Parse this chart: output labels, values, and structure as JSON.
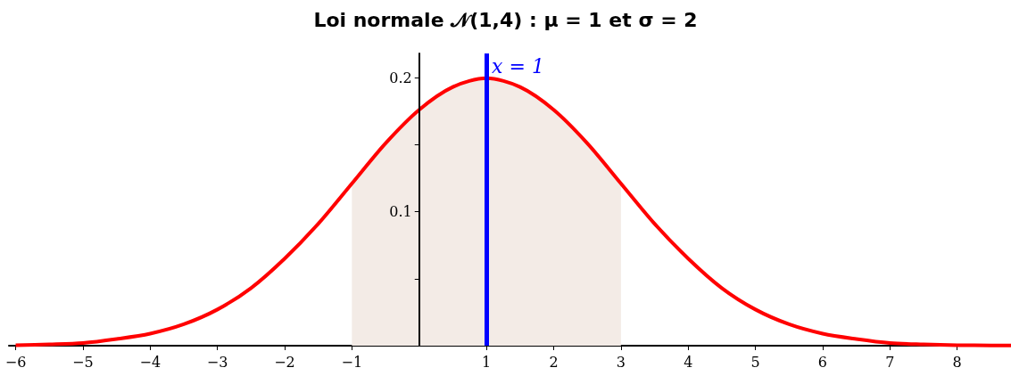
{
  "chart_data": {
    "type": "line",
    "title": "Loi normale 𝒩(1,4) : μ = 1 et σ = 2",
    "series": [
      {
        "type": "area",
        "color": "#f3ebe6",
        "x": [
          -1,
          -0.5,
          0,
          0.5,
          1,
          1.5,
          2,
          2.5,
          3
        ],
        "values": [
          0.121,
          0.151,
          0.176,
          0.193,
          0.1995,
          0.193,
          0.176,
          0.151,
          0.121
        ]
      },
      {
        "type": "line",
        "color": "#ff0000",
        "x": [
          -6,
          -5.5,
          -5,
          -4.5,
          -4,
          -3.5,
          -3,
          -2.5,
          -2,
          -1.5,
          -1,
          -0.5,
          0,
          0.5,
          1,
          1.5,
          2,
          2.5,
          3,
          3.5,
          4,
          4.5,
          5,
          5.5,
          6,
          6.5,
          7,
          7.5,
          8,
          8.5,
          8.8
        ],
        "values": [
          0.0004,
          0.001,
          0.002,
          0.005,
          0.009,
          0.016,
          0.027,
          0.043,
          0.065,
          0.091,
          0.121,
          0.151,
          0.176,
          0.193,
          0.1995,
          0.193,
          0.176,
          0.151,
          0.121,
          0.091,
          0.065,
          0.043,
          0.027,
          0.016,
          0.009,
          0.005,
          0.002,
          0.001,
          0.0004,
          0.0002,
          0.0001
        ]
      }
    ],
    "xlim": [
      -6.1,
      8.8
    ],
    "xticks": [
      -6,
      -5,
      -4,
      -3,
      -2,
      -1,
      1,
      2,
      3,
      4,
      5,
      6,
      7,
      8
    ],
    "ylim": [
      0,
      0.218
    ],
    "yticks": [
      {
        "value": 0.05,
        "label": null
      },
      0.1,
      {
        "value": 0.15,
        "label": null
      },
      0.2
    ],
    "ref_lines": [
      {
        "axis": "x",
        "value": 1,
        "label": "x = 1",
        "color": "#0000ff"
      }
    ],
    "grid": false,
    "marker": "none",
    "line_style": "solid"
  }
}
